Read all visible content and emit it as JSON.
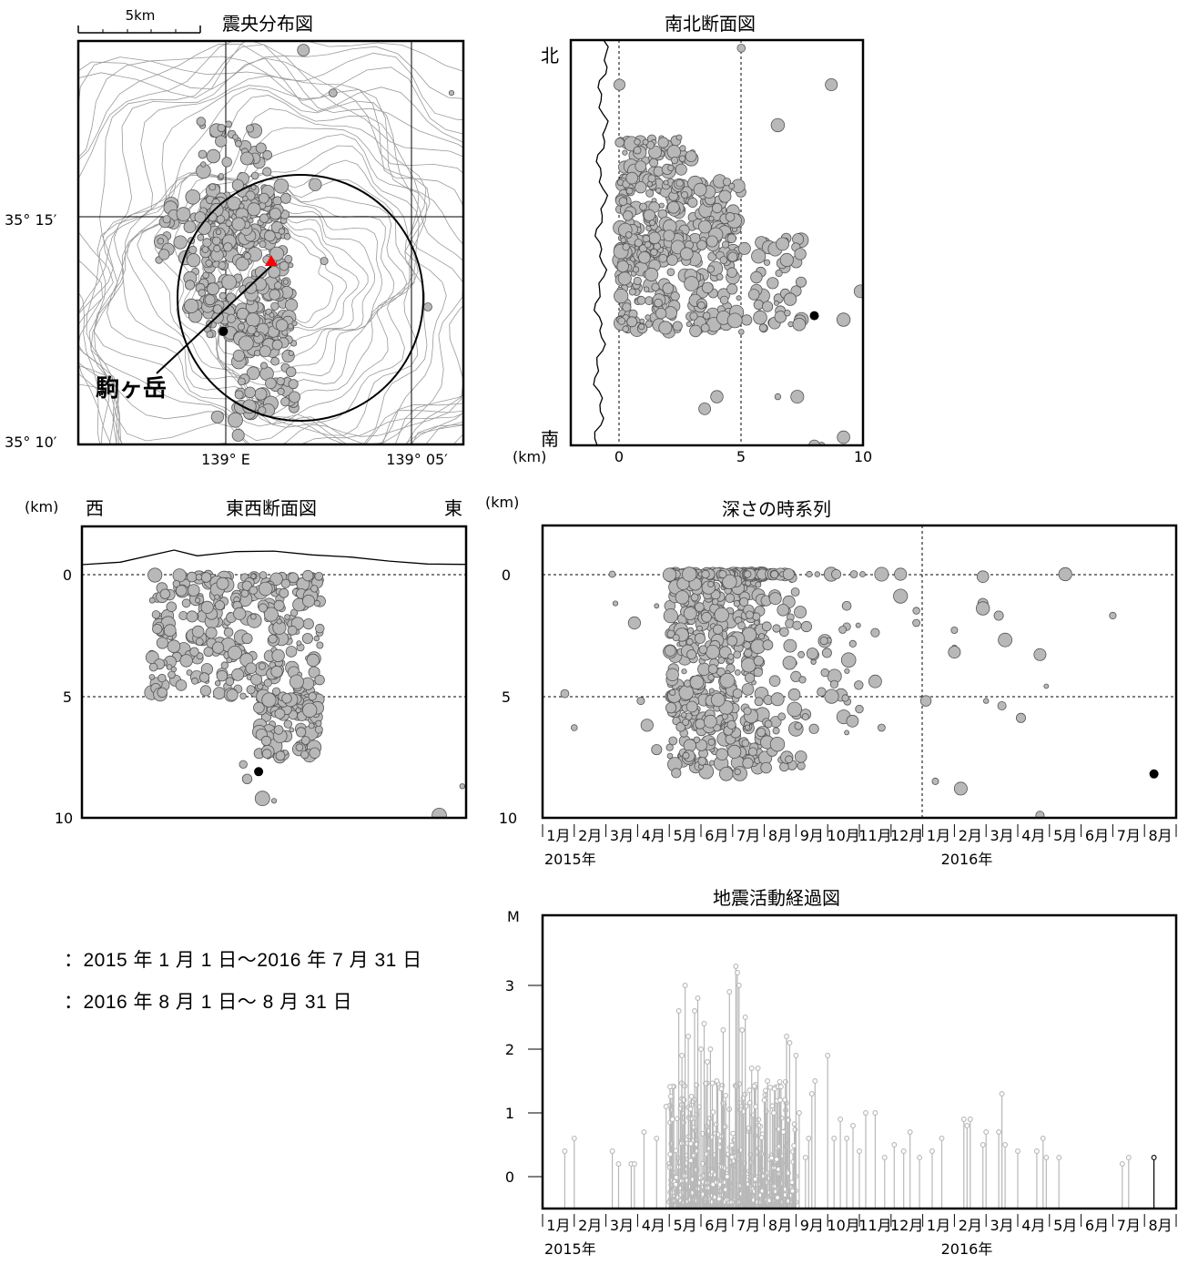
{
  "legend": {
    "period1": "：2015 年 1 月 1 日～2016 年 7 月 31 日",
    "period2": "：2016 年 8 月 1 日～ 8 月 31 日",
    "period1_color": "#b8b8b8",
    "period2_color": "#000000"
  },
  "scale_bar_label": "5km",
  "volcano_label": "駒ヶ岳",
  "volcano_marker_color": "#ff0000",
  "chart_data": [
    {
      "type": "map-scatter",
      "title": "震央分布図",
      "x_ticks": [
        "139° E",
        "139° 05′"
      ],
      "y_ticks": [
        "35° 15′",
        "35° 10′"
      ],
      "xlim": [
        138.96,
        139.09
      ],
      "ylim": [
        35.165,
        35.297
      ],
      "volcano": {
        "label": "駒ヶ岳",
        "lon": 139.015,
        "lat": 35.228
      },
      "circle": {
        "lon": 139.028,
        "lat": 35.213,
        "radius_deg": 0.0405
      },
      "clusters": [
        {
          "lon": [
            139.001,
            139.024
          ],
          "lat": [
            35.252,
            35.271
          ],
          "count": 35
        },
        {
          "lon": [
            139.003,
            139.032
          ],
          "lat": [
            35.2,
            35.25
          ],
          "count": 260
        },
        {
          "lon": [
            138.985,
            139.02
          ],
          "lat": [
            35.224,
            35.246
          ],
          "count": 70
        },
        {
          "lon": [
            139.013,
            139.033
          ],
          "lat": [
            35.175,
            35.206
          ],
          "count": 90
        },
        {
          "lon": [
            138.997,
            139.01
          ],
          "lat": [
            35.206,
            35.222
          ],
          "count": 25
        }
      ],
      "outliers": [
        [
          139.036,
          35.294
        ],
        [
          139.046,
          35.28
        ],
        [
          139.086,
          35.28
        ],
        [
          139.04,
          35.25
        ],
        [
          139.078,
          35.21
        ],
        [
          139.043,
          35.225
        ],
        [
          139.013,
          35.173
        ],
        [
          139.007,
          35.174
        ],
        [
          139.014,
          35.168
        ],
        [
          139.018,
          35.182
        ]
      ],
      "latest": [
        {
          "lon": 139.009,
          "lat": 35.202
        }
      ]
    },
    {
      "type": "scatter",
      "title": "南北断面図",
      "xlabel": "(km)",
      "x_ticks": [
        0,
        5,
        10
      ],
      "xlim": [
        -2,
        10
      ],
      "direction_labels": [
        "北",
        "南"
      ],
      "clusters": [
        {
          "x": [
            0.0,
            3.0
          ],
          "frac": [
            0.24,
            0.34
          ],
          "count": 60
        },
        {
          "x": [
            0.0,
            5.0
          ],
          "frac": [
            0.34,
            0.55
          ],
          "count": 220
        },
        {
          "x": [
            0.0,
            7.5
          ],
          "frac": [
            0.48,
            0.72
          ],
          "count": 260
        }
      ],
      "outliers": [
        [
          0.0,
          0.11
        ],
        [
          5.0,
          0.02
        ],
        [
          8.7,
          0.11
        ],
        [
          6.5,
          0.21
        ],
        [
          9.9,
          0.62
        ],
        [
          9.2,
          0.69
        ],
        [
          3.5,
          0.91
        ],
        [
          4.0,
          0.88
        ],
        [
          6.5,
          0.88
        ],
        [
          7.3,
          0.88
        ],
        [
          8.3,
          1.0
        ],
        [
          9.2,
          0.98
        ],
        [
          8.0,
          1.0
        ]
      ],
      "latest": [
        [
          8.0,
          0.68
        ]
      ]
    },
    {
      "type": "scatter",
      "title": "東西断面図",
      "ylabel": "(km)",
      "y_ticks": [
        0,
        5,
        10
      ],
      "ylim": [
        10,
        -2
      ],
      "direction_labels": [
        "西",
        "東"
      ],
      "clusters": [
        {
          "x": [
            0.18,
            0.62
          ],
          "depth": [
            0.0,
            5.0
          ],
          "count": 320
        },
        {
          "x": [
            0.46,
            0.62
          ],
          "depth": [
            5.0,
            7.5
          ],
          "count": 110
        }
      ],
      "outliers": [
        [
          0.6,
          5.0
        ],
        [
          0.43,
          8.4
        ],
        [
          0.5,
          9.3
        ],
        [
          0.47,
          9.2
        ],
        [
          0.93,
          9.9
        ],
        [
          0.99,
          8.7
        ],
        [
          0.42,
          7.8
        ]
      ],
      "latest": [
        [
          0.46,
          8.1
        ]
      ]
    },
    {
      "type": "scatter",
      "title": "深さの時系列",
      "ylabel": "(km)",
      "y_ticks": [
        0,
        5,
        10
      ],
      "ylim": [
        10,
        -2
      ],
      "x_month_labels": [
        "1月",
        "2月",
        "3月",
        "4月",
        "5月",
        "6月",
        "7月",
        "8月",
        "9月",
        "10月",
        "11月",
        "12月",
        "1月",
        "2月",
        "3月",
        "4月",
        "5月",
        "6月",
        "7月",
        "8月"
      ],
      "year_labels": [
        "2015年",
        "2016年"
      ],
      "xlim_months": [
        0,
        20
      ],
      "clusters": [
        {
          "t": [
            4.0,
            7.0
          ],
          "depth": [
            0.0,
            8.2
          ],
          "count": 520
        },
        {
          "t": [
            7.0,
            8.2
          ],
          "depth": [
            0.0,
            8.0
          ],
          "count": 60
        },
        {
          "t": [
            8.2,
            10.0
          ],
          "depth": [
            2.0,
            6.5
          ],
          "count": 35
        }
      ],
      "points": [
        [
          0.7,
          4.9
        ],
        [
          1.0,
          6.3
        ],
        [
          2.2,
          0.0
        ],
        [
          2.3,
          1.2
        ],
        [
          2.9,
          2.0
        ],
        [
          3.6,
          1.3
        ],
        [
          3.1,
          5.2
        ],
        [
          3.3,
          6.2
        ],
        [
          3.6,
          7.2
        ],
        [
          9.6,
          1.3
        ],
        [
          10.1,
          0.0
        ],
        [
          10.7,
          0.0
        ],
        [
          11.3,
          0.0
        ],
        [
          11.3,
          0.9
        ],
        [
          11.8,
          1.5
        ],
        [
          11.8,
          2.0
        ],
        [
          10.5,
          2.4
        ],
        [
          10.5,
          4.4
        ],
        [
          10.7,
          6.3
        ],
        [
          9.6,
          6.5
        ],
        [
          12.1,
          5.2
        ],
        [
          12.4,
          8.5
        ],
        [
          13.2,
          8.8
        ],
        [
          13.0,
          2.3
        ],
        [
          13.0,
          3.0
        ],
        [
          13.0,
          3.2
        ],
        [
          13.9,
          0.1
        ],
        [
          13.9,
          1.2
        ],
        [
          13.9,
          1.4
        ],
        [
          14.4,
          1.7
        ],
        [
          14.6,
          2.7
        ],
        [
          14.0,
          5.2
        ],
        [
          14.5,
          5.4
        ],
        [
          15.1,
          5.9
        ],
        [
          15.7,
          3.3
        ],
        [
          15.9,
          4.6
        ],
        [
          15.7,
          9.9
        ],
        [
          16.5,
          0.0
        ],
        [
          18.0,
          1.7
        ]
      ],
      "latest": [
        [
          19.3,
          8.2
        ]
      ]
    },
    {
      "type": "stem",
      "title": "地震活動経過図",
      "ylabel": "M",
      "y_ticks": [
        0,
        1,
        2,
        3
      ],
      "ylim": [
        -0.5,
        4.1
      ],
      "x_month_labels": [
        "1月",
        "2月",
        "3月",
        "4月",
        "5月",
        "6月",
        "7月",
        "8月",
        "9月",
        "10月",
        "11月",
        "12月",
        "1月",
        "2月",
        "3月",
        "4月",
        "5月",
        "6月",
        "7月",
        "8月"
      ],
      "year_labels": [
        "2015年",
        "2016年"
      ],
      "xlim_months": [
        0,
        20
      ],
      "events": [
        [
          0.7,
          0.4
        ],
        [
          1.0,
          0.6
        ],
        [
          2.2,
          0.4
        ],
        [
          2.4,
          0.2
        ],
        [
          2.8,
          0.2
        ],
        [
          2.9,
          0.2
        ],
        [
          3.2,
          0.7
        ],
        [
          3.6,
          0.6
        ],
        [
          3.9,
          1.1
        ],
        [
          4.1,
          0.9
        ],
        [
          4.3,
          2.6
        ],
        [
          4.4,
          1.9
        ],
        [
          4.5,
          3.0
        ],
        [
          4.6,
          2.2
        ],
        [
          4.8,
          2.6
        ],
        [
          4.9,
          2.8
        ],
        [
          5.0,
          2.0
        ],
        [
          5.1,
          2.4
        ],
        [
          5.2,
          1.8
        ],
        [
          5.3,
          2.0
        ],
        [
          5.5,
          1.5
        ],
        [
          5.7,
          2.3
        ],
        [
          5.9,
          2.9
        ],
        [
          6.1,
          3.3
        ],
        [
          6.15,
          3.2
        ],
        [
          6.2,
          3.0
        ],
        [
          6.3,
          2.3
        ],
        [
          6.4,
          2.5
        ],
        [
          6.6,
          1.7
        ],
        [
          6.8,
          1.7
        ],
        [
          7.0,
          1.2
        ],
        [
          7.1,
          1.5
        ],
        [
          7.3,
          1.0
        ],
        [
          7.5,
          1.2
        ],
        [
          7.6,
          0.7
        ],
        [
          7.7,
          2.2
        ],
        [
          7.8,
          2.1
        ],
        [
          8.0,
          1.9
        ],
        [
          8.1,
          1.0
        ],
        [
          8.3,
          0.3
        ],
        [
          8.4,
          0.6
        ],
        [
          8.5,
          1.3
        ],
        [
          8.6,
          1.5
        ],
        [
          9.0,
          1.9
        ],
        [
          9.2,
          0.6
        ],
        [
          9.4,
          0.9
        ],
        [
          9.6,
          0.6
        ],
        [
          9.8,
          0.8
        ],
        [
          10.0,
          0.4
        ],
        [
          10.2,
          1.0
        ],
        [
          10.5,
          1.0
        ],
        [
          10.8,
          0.3
        ],
        [
          11.1,
          0.5
        ],
        [
          11.4,
          0.4
        ],
        [
          11.6,
          0.7
        ],
        [
          11.9,
          0.3
        ],
        [
          12.3,
          0.4
        ],
        [
          12.6,
          0.6
        ],
        [
          13.3,
          0.9
        ],
        [
          13.4,
          0.8
        ],
        [
          13.5,
          0.9
        ],
        [
          13.9,
          0.5
        ],
        [
          14.0,
          0.7
        ],
        [
          14.4,
          0.7
        ],
        [
          14.5,
          1.3
        ],
        [
          14.6,
          0.5
        ],
        [
          15.0,
          0.4
        ],
        [
          15.6,
          0.4
        ],
        [
          15.8,
          0.6
        ],
        [
          15.9,
          0.3
        ],
        [
          16.3,
          0.3
        ],
        [
          18.3,
          0.2
        ],
        [
          18.5,
          0.3
        ]
      ],
      "latest": [
        [
          19.3,
          0.3
        ]
      ]
    }
  ]
}
